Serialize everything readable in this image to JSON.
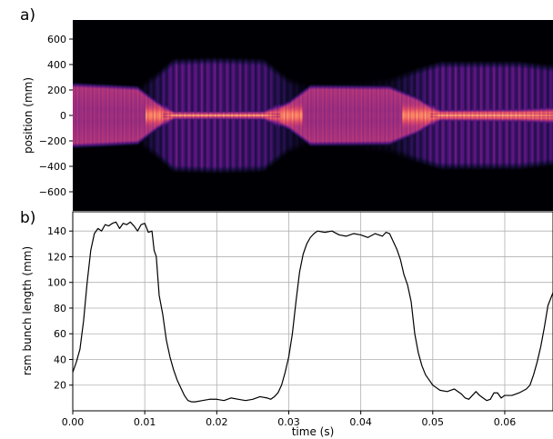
{
  "chart_data": [
    {
      "panel_label": "a)",
      "type": "heatmap",
      "ylabel": "position (mm)",
      "yticks": [
        -600,
        -400,
        -200,
        0,
        200,
        400,
        600
      ],
      "ylim": [
        -750,
        750
      ],
      "xlim": [
        0,
        0.0667
      ],
      "colormap": "magma",
      "grid": false,
      "profile": [
        {
          "t": 0.0,
          "core": 260,
          "halo": 260,
          "halo_int": 0.0,
          "bright": 0.45
        },
        {
          "t": 0.004,
          "core": 250,
          "halo": 250,
          "halo_int": 0.0,
          "bright": 0.4
        },
        {
          "t": 0.009,
          "core": 235,
          "halo": 240,
          "halo_int": 0.0,
          "bright": 0.42
        },
        {
          "t": 0.0115,
          "core": 130,
          "halo": 330,
          "halo_int": 0.2,
          "bright": 0.6
        },
        {
          "t": 0.014,
          "core": 30,
          "halo": 450,
          "halo_int": 0.35,
          "bright": 1.0
        },
        {
          "t": 0.02,
          "core": 28,
          "halo": 460,
          "halo_int": 0.35,
          "bright": 1.0
        },
        {
          "t": 0.0265,
          "core": 30,
          "halo": 450,
          "halo_int": 0.3,
          "bright": 1.0
        },
        {
          "t": 0.03,
          "core": 120,
          "halo": 300,
          "halo_int": 0.15,
          "bright": 0.65
        },
        {
          "t": 0.033,
          "core": 245,
          "halo": 250,
          "halo_int": 0.0,
          "bright": 0.42
        },
        {
          "t": 0.044,
          "core": 240,
          "halo": 300,
          "halo_int": 0.08,
          "bright": 0.42
        },
        {
          "t": 0.048,
          "core": 150,
          "halo": 380,
          "halo_int": 0.25,
          "bright": 0.6
        },
        {
          "t": 0.051,
          "core": 40,
          "halo": 430,
          "halo_int": 0.35,
          "bright": 1.0
        },
        {
          "t": 0.062,
          "core": 45,
          "halo": 430,
          "halo_int": 0.35,
          "bright": 1.0
        },
        {
          "t": 0.0667,
          "core": 60,
          "halo": 400,
          "halo_int": 0.3,
          "bright": 0.9
        }
      ]
    },
    {
      "panel_label": "b)",
      "type": "line",
      "xlabel": "time (s)",
      "ylabel": "rsm bunch length (mm)",
      "xlim": [
        0,
        0.0667
      ],
      "ylim": [
        0,
        155
      ],
      "xticks": [
        0.0,
        0.01,
        0.02,
        0.03,
        0.04,
        0.05,
        0.06
      ],
      "xtick_labels": [
        "0.00",
        "0.01",
        "0.02",
        "0.03",
        "0.04",
        "0.05",
        "0.06"
      ],
      "yticks": [
        20,
        40,
        60,
        80,
        100,
        120,
        140
      ],
      "grid": true,
      "line_color": "#000000",
      "x": [
        0.0,
        0.0005,
        0.001,
        0.0015,
        0.002,
        0.0025,
        0.003,
        0.0035,
        0.004,
        0.0045,
        0.005,
        0.0055,
        0.006,
        0.0065,
        0.007,
        0.0075,
        0.008,
        0.0085,
        0.009,
        0.0095,
        0.01,
        0.0105,
        0.011,
        0.0113,
        0.0116,
        0.012,
        0.0125,
        0.013,
        0.0135,
        0.014,
        0.0145,
        0.015,
        0.0155,
        0.016,
        0.0165,
        0.017,
        0.018,
        0.019,
        0.02,
        0.021,
        0.022,
        0.023,
        0.024,
        0.025,
        0.026,
        0.027,
        0.0275,
        0.028,
        0.0285,
        0.029,
        0.0295,
        0.03,
        0.0305,
        0.031,
        0.0315,
        0.032,
        0.0325,
        0.033,
        0.0335,
        0.034,
        0.035,
        0.036,
        0.037,
        0.038,
        0.039,
        0.04,
        0.041,
        0.042,
        0.043,
        0.0435,
        0.044,
        0.0445,
        0.045,
        0.0455,
        0.046,
        0.0465,
        0.047,
        0.0475,
        0.048,
        0.0485,
        0.049,
        0.0495,
        0.05,
        0.0505,
        0.051,
        0.052,
        0.053,
        0.054,
        0.0545,
        0.055,
        0.0555,
        0.056,
        0.0565,
        0.057,
        0.0575,
        0.058,
        0.0585,
        0.059,
        0.0595,
        0.06,
        0.061,
        0.062,
        0.063,
        0.0635,
        0.064,
        0.0645,
        0.065,
        0.0655,
        0.066,
        0.0667
      ],
      "y": [
        30,
        38,
        48,
        70,
        100,
        125,
        138,
        142,
        140,
        145,
        144,
        146,
        147,
        142,
        146,
        145,
        147,
        144,
        140,
        145,
        146,
        139,
        140,
        125,
        120,
        90,
        75,
        55,
        42,
        32,
        24,
        18,
        12,
        8,
        7,
        7,
        8,
        9,
        9,
        8,
        10,
        9,
        8,
        9,
        11,
        10,
        9,
        11,
        14,
        20,
        30,
        42,
        60,
        85,
        108,
        122,
        130,
        135,
        138,
        140,
        139,
        140,
        137,
        136,
        138,
        137,
        135,
        138,
        136,
        139,
        138,
        132,
        126,
        118,
        106,
        98,
        85,
        60,
        45,
        35,
        28,
        24,
        20,
        18,
        16,
        15,
        17,
        13,
        10,
        9,
        12,
        15,
        12,
        10,
        8,
        9,
        14,
        14,
        10,
        12,
        12,
        14,
        17,
        20,
        28,
        38,
        50,
        65,
        82,
        92
      ]
    }
  ]
}
